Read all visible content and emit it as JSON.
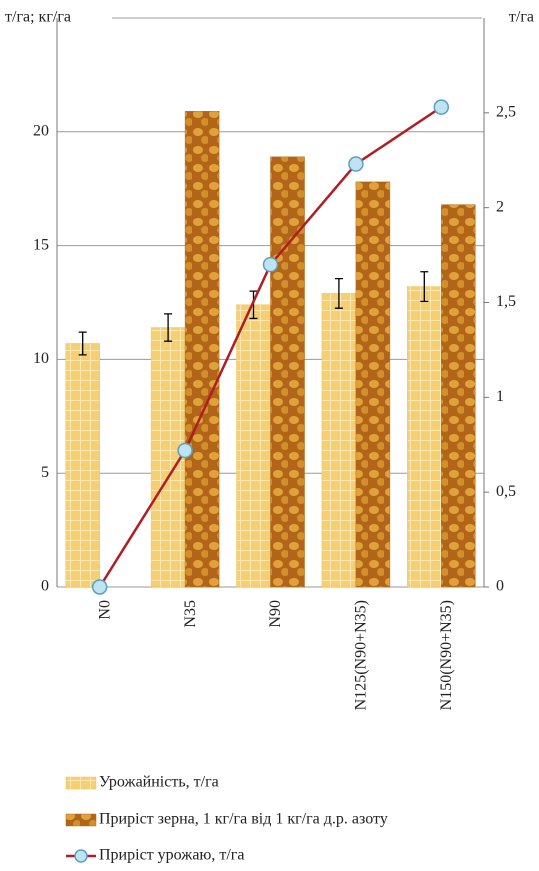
{
  "chart_data": {
    "type": "bar",
    "y_label": "т/га; кг/га",
    "y2_label": "т/га",
    "categories": [
      "N0",
      "N35",
      "N90",
      "N125(N90+N35)",
      "N150(N90+N35)"
    ],
    "series": [
      {
        "name": "Урожайність, т/га",
        "type": "bar",
        "color": "#f3c35c",
        "values": [
          10.7,
          11.4,
          12.4,
          12.9,
          13.2
        ],
        "errors": [
          0.5,
          0.6,
          0.6,
          0.65,
          0.65
        ]
      },
      {
        "name": "Приріст зерна, 1 кг/га від 1 кг/га д.р. азоту",
        "type": "bar",
        "color": "#b56d1c",
        "values": [
          0,
          20.9,
          18.9,
          17.8,
          16.8
        ]
      },
      {
        "name": "Приріст урожаю, т/га",
        "type": "line",
        "axis": "y2",
        "color": "#b01e23",
        "marker_color": "#bfe3f0",
        "values": [
          0,
          0.72,
          1.7,
          2.23,
          2.53
        ]
      }
    ],
    "ylim": [
      0,
      25
    ],
    "yticks": [
      0,
      5,
      10,
      15,
      20
    ],
    "y2lim": [
      0,
      3
    ],
    "y2ticks": [
      0,
      {
        "value": 0.5,
        "label": "0,5"
      },
      1,
      {
        "value": 1.5,
        "label": "1,5"
      },
      2,
      {
        "value": 2.5,
        "label": "2,5"
      }
    ],
    "grid": true,
    "legend": "bottom"
  }
}
